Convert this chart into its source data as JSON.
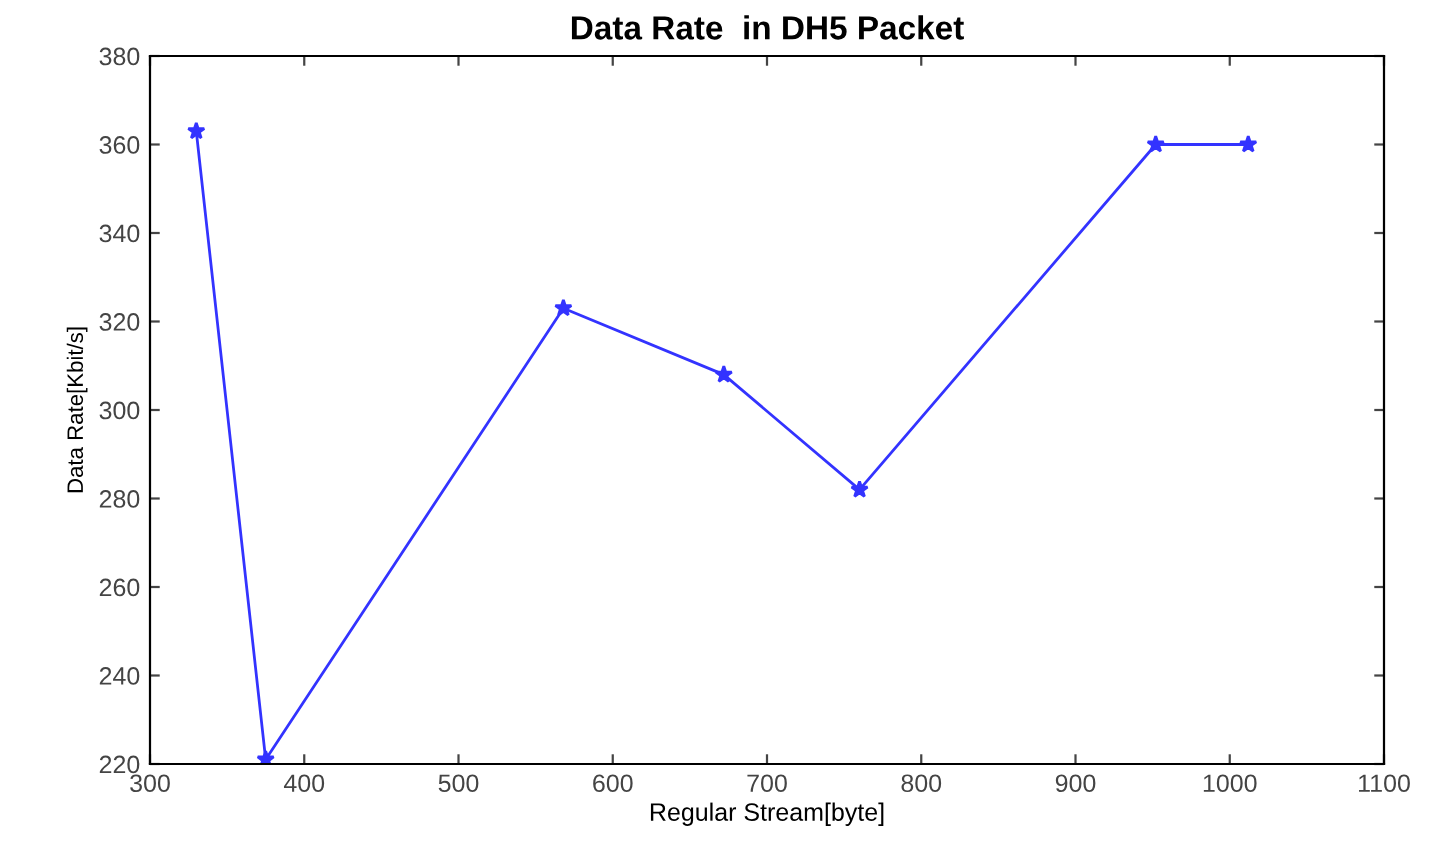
{
  "chart_data": {
    "type": "line",
    "title": "Data Rate  in DH5 Packet",
    "xlabel": "Regular Stream[byte]",
    "ylabel": "Data Rate[Kbit/s]",
    "x": [
      330,
      375,
      568,
      672,
      760,
      952,
      1012
    ],
    "series": [
      {
        "color": "#3333ff",
        "values": [
          363,
          221,
          323,
          308,
          282,
          360,
          360
        ]
      }
    ],
    "xlim": [
      300,
      1100
    ],
    "xticks": [
      300,
      400,
      500,
      600,
      700,
      800,
      900,
      1000,
      1100
    ],
    "ylim": [
      220,
      380
    ],
    "yticks": [
      220,
      240,
      260,
      280,
      300,
      320,
      340,
      360,
      380
    ],
    "marker": "star",
    "line_style": "solid",
    "grid": false,
    "legend": false
  }
}
